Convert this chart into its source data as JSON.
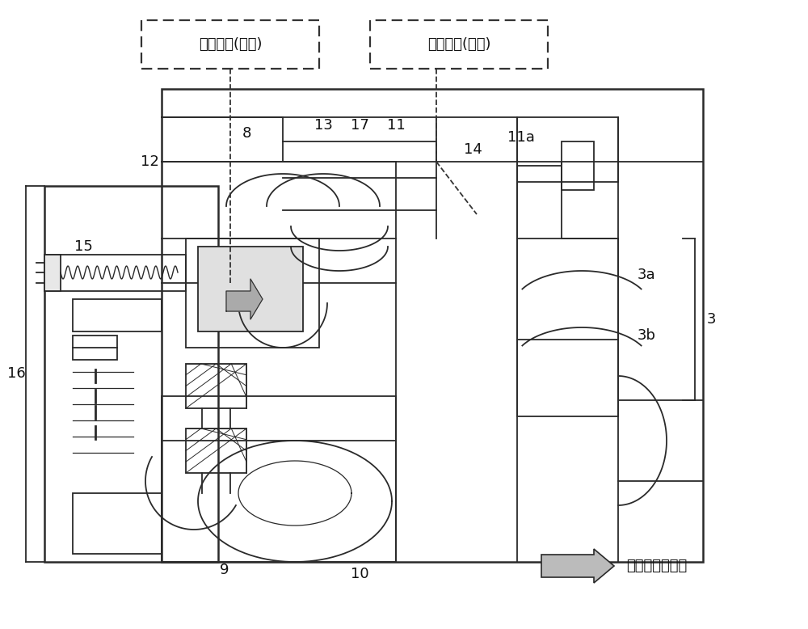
{
  "bg_color": "#f5f5f0",
  "label_high_pressure": "排出压力(高压)",
  "label_low_pressure": "吸入压力(低压)",
  "legend_text": "排出气体的流动",
  "dark": "#2a2a2a",
  "gray": "#888888",
  "light_gray": "#cccccc",
  "white": "#ffffff"
}
